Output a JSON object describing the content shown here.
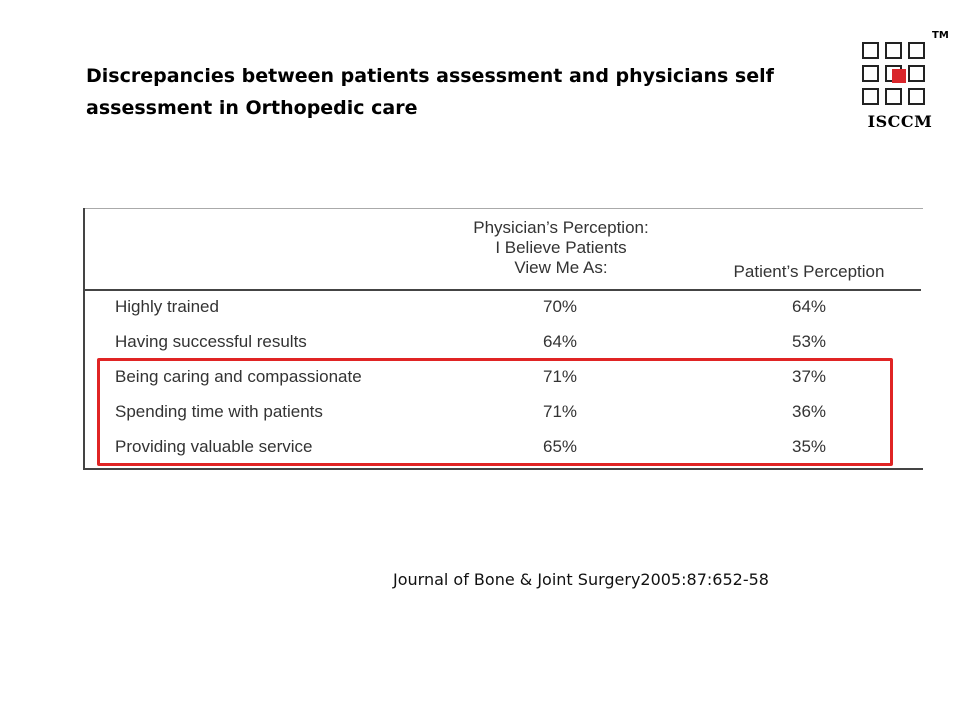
{
  "slide": {
    "title_line1": "Discrepancies between patients assessment and physicians self",
    "title_line2": "assessment in Orthopedic care",
    "citation": "Journal of Bone & Joint Surgery2005:87:652-58"
  },
  "logo": {
    "text": "ISCCM",
    "tm": "TM",
    "icon": "isccm-cross-logo",
    "accent_color": "#d9262b"
  },
  "table": {
    "header_col1_line1": "Physician’s Perception:",
    "header_col1_line2": "I Believe Patients",
    "header_col1_line3": "View Me As:",
    "header_col2": "Patient’s Perception",
    "rows": [
      {
        "label": "Highly trained",
        "physician": "70%",
        "patient": "64%"
      },
      {
        "label": "Having successful results",
        "physician": "64%",
        "patient": "53%"
      },
      {
        "label": "Being caring and compassionate",
        "physician": "71%",
        "patient": "37%"
      },
      {
        "label": "Spending time with patients",
        "physician": "71%",
        "patient": "36%"
      },
      {
        "label": "Providing valuable service",
        "physician": "65%",
        "patient": "35%"
      }
    ],
    "highlight_color": "#e02424",
    "highlighted_rows": [
      2,
      3,
      4
    ]
  }
}
